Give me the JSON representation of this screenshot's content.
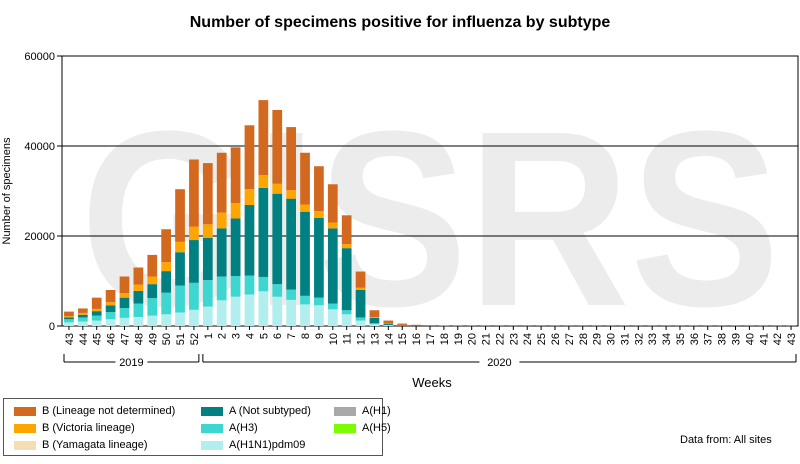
{
  "chart_data": {
    "type": "bar",
    "stacked": true,
    "title": "Number of specimens positive for influenza by subtype",
    "xlabel": "Weeks",
    "ylabel": "Number of specimens",
    "ylim": [
      0,
      60000
    ],
    "yticks": [
      "0",
      "20000",
      "40000",
      "60000"
    ],
    "grid": true,
    "watermark": "GISRS",
    "categories": [
      "43",
      "44",
      "45",
      "46",
      "47",
      "48",
      "49",
      "50",
      "51",
      "52",
      "1",
      "2",
      "3",
      "4",
      "5",
      "6",
      "7",
      "8",
      "9",
      "10",
      "11",
      "12",
      "13",
      "14",
      "15",
      "16",
      "17",
      "18",
      "19",
      "20",
      "21",
      "22",
      "23",
      "24",
      "25",
      "26",
      "27",
      "28",
      "29",
      "30",
      "31",
      "32",
      "33",
      "34",
      "35",
      "36",
      "37",
      "38",
      "39",
      "40",
      "41",
      "42",
      "43"
    ],
    "year_groups": [
      {
        "label": "2019",
        "start": "43",
        "end": "52"
      },
      {
        "label": "2020",
        "start": "1",
        "end": "43"
      }
    ],
    "series": [
      {
        "name": "A(H1N1)pdm09",
        "color": "#b2eeee",
        "values": [
          800,
          1000,
          1200,
          1500,
          1800,
          2000,
          2300,
          2600,
          3000,
          3600,
          4300,
          5700,
          6500,
          7000,
          7700,
          6500,
          5800,
          4800,
          4600,
          3700,
          2600,
          1200,
          400,
          150,
          60,
          30,
          20,
          15,
          10,
          10,
          10,
          10,
          10,
          10,
          10,
          10,
          10,
          10,
          10,
          10,
          10,
          10,
          10,
          10,
          10,
          10,
          10,
          10,
          10,
          10,
          10,
          10,
          10
        ]
      },
      {
        "name": "A(H3)",
        "color": "#3ed6d0",
        "values": [
          700,
          900,
          1100,
          1600,
          2200,
          3000,
          3900,
          4800,
          6000,
          6000,
          5900,
          5300,
          4600,
          4200,
          3200,
          2800,
          2300,
          1900,
          1700,
          1300,
          900,
          700,
          200,
          80,
          40,
          20,
          15,
          10,
          10,
          10,
          10,
          10,
          10,
          10,
          10,
          10,
          10,
          10,
          10,
          10,
          10,
          10,
          10,
          10,
          10,
          10,
          10,
          10,
          10,
          10,
          10,
          10,
          10
        ]
      },
      {
        "name": "A(Not subtyped)",
        "color": "#008080",
        "values": [
          400,
          600,
          1000,
          1500,
          2300,
          2800,
          3100,
          4800,
          7400,
          9500,
          9400,
          10700,
          12800,
          15700,
          19800,
          20100,
          20200,
          18700,
          17700,
          16700,
          13800,
          6100,
          1200,
          300,
          100,
          50,
          30,
          20,
          15,
          10,
          10,
          10,
          10,
          10,
          10,
          10,
          10,
          10,
          10,
          10,
          10,
          10,
          10,
          10,
          10,
          10,
          10,
          10,
          10,
          10,
          10,
          10,
          10
        ]
      },
      {
        "name": "A(H1)",
        "color": "#a9a9a9",
        "values": [
          0,
          0,
          0,
          0,
          0,
          0,
          0,
          0,
          0,
          0,
          0,
          0,
          0,
          0,
          0,
          0,
          0,
          0,
          0,
          0,
          0,
          0,
          0,
          0,
          0,
          0,
          0,
          0,
          0,
          0,
          0,
          0,
          0,
          0,
          0,
          0,
          0,
          0,
          0,
          0,
          0,
          0,
          0,
          0,
          0,
          0,
          0,
          0,
          0,
          0,
          0,
          0,
          0
        ]
      },
      {
        "name": "A(H5)",
        "color": "#7cfc00",
        "values": [
          0,
          0,
          0,
          0,
          0,
          0,
          0,
          0,
          0,
          0,
          0,
          0,
          0,
          0,
          0,
          0,
          0,
          0,
          0,
          0,
          0,
          0,
          0,
          0,
          0,
          0,
          0,
          0,
          0,
          0,
          0,
          0,
          0,
          0,
          0,
          0,
          0,
          0,
          0,
          0,
          0,
          0,
          0,
          0,
          0,
          0,
          0,
          0,
          0,
          0,
          0,
          0,
          0
        ]
      },
      {
        "name": "B (Yamagata lineage)",
        "color": "#f5deb3",
        "values": [
          0,
          0,
          0,
          0,
          0,
          0,
          0,
          0,
          0,
          0,
          0,
          0,
          0,
          0,
          0,
          0,
          0,
          0,
          0,
          0,
          0,
          0,
          0,
          0,
          0,
          0,
          0,
          0,
          0,
          0,
          0,
          0,
          0,
          0,
          0,
          0,
          0,
          0,
          0,
          0,
          0,
          0,
          0,
          0,
          0,
          0,
          0,
          0,
          0,
          0,
          0,
          0,
          0
        ]
      },
      {
        "name": "B (Victoria lineage)",
        "color": "#ffa500",
        "values": [
          300,
          400,
          500,
          700,
          1000,
          1400,
          1700,
          2000,
          2300,
          3000,
          3000,
          3500,
          3400,
          3500,
          2800,
          2200,
          1900,
          1600,
          1500,
          1300,
          900,
          500,
          200,
          80,
          40,
          20,
          15,
          10,
          10,
          10,
          10,
          10,
          10,
          10,
          10,
          10,
          10,
          10,
          10,
          10,
          10,
          10,
          10,
          10,
          10,
          10,
          10,
          10,
          10,
          10,
          10,
          10,
          10
        ]
      },
      {
        "name": "B (Lineage not determined)",
        "color": "#d2691e",
        "values": [
          1000,
          1000,
          2500,
          2700,
          3700,
          3800,
          4800,
          7300,
          11700,
          14900,
          13600,
          13300,
          12400,
          14200,
          16700,
          16400,
          14000,
          11500,
          10000,
          8500,
          6400,
          3600,
          1500,
          600,
          300,
          150,
          80,
          50,
          30,
          20,
          15,
          10,
          10,
          10,
          10,
          10,
          10,
          10,
          10,
          10,
          10,
          10,
          10,
          10,
          10,
          10,
          10,
          10,
          10,
          10,
          10,
          10,
          10
        ]
      }
    ]
  },
  "legend": [
    {
      "label": "B (Lineage not determined)",
      "color": "#d2691e"
    },
    {
      "label": "B (Victoria lineage)",
      "color": "#ffa500"
    },
    {
      "label": "B (Yamagata lineage)",
      "color": "#f5deb3"
    },
    {
      "label": "A (Not subtyped)",
      "color": "#008080"
    },
    {
      "label": "A(H3)",
      "color": "#3ed6d0"
    },
    {
      "label": "A(H1N1)pdm09",
      "color": "#b2eeee"
    },
    {
      "label": "A(H1)",
      "color": "#a9a9a9"
    },
    {
      "label": "A(H5)",
      "color": "#7cfc00"
    }
  ],
  "source_note": "Data from: All sites"
}
